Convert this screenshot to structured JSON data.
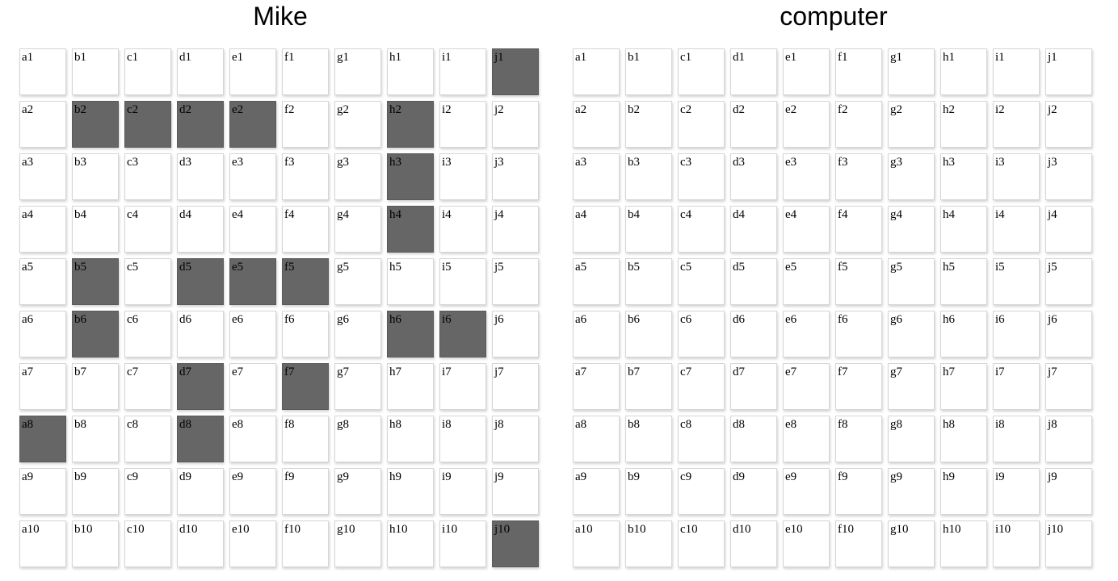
{
  "columns": [
    "a",
    "b",
    "c",
    "d",
    "e",
    "f",
    "g",
    "h",
    "i",
    "j"
  ],
  "rows": [
    "1",
    "2",
    "3",
    "4",
    "5",
    "6",
    "7",
    "8",
    "9",
    "10"
  ],
  "colors": {
    "cell_empty": "#ffffff",
    "cell_ship": "#666666",
    "cell_border": "#d6d6d6"
  },
  "boards": [
    {
      "id": "player",
      "title": "Mike",
      "ships": [
        "j1",
        "b2",
        "c2",
        "d2",
        "e2",
        "h2",
        "h3",
        "h4",
        "b5",
        "d5",
        "e5",
        "f5",
        "b6",
        "h6",
        "i6",
        "d7",
        "f7",
        "a8",
        "d8",
        "j10"
      ]
    },
    {
      "id": "computer",
      "title": "computer",
      "ships": []
    }
  ]
}
